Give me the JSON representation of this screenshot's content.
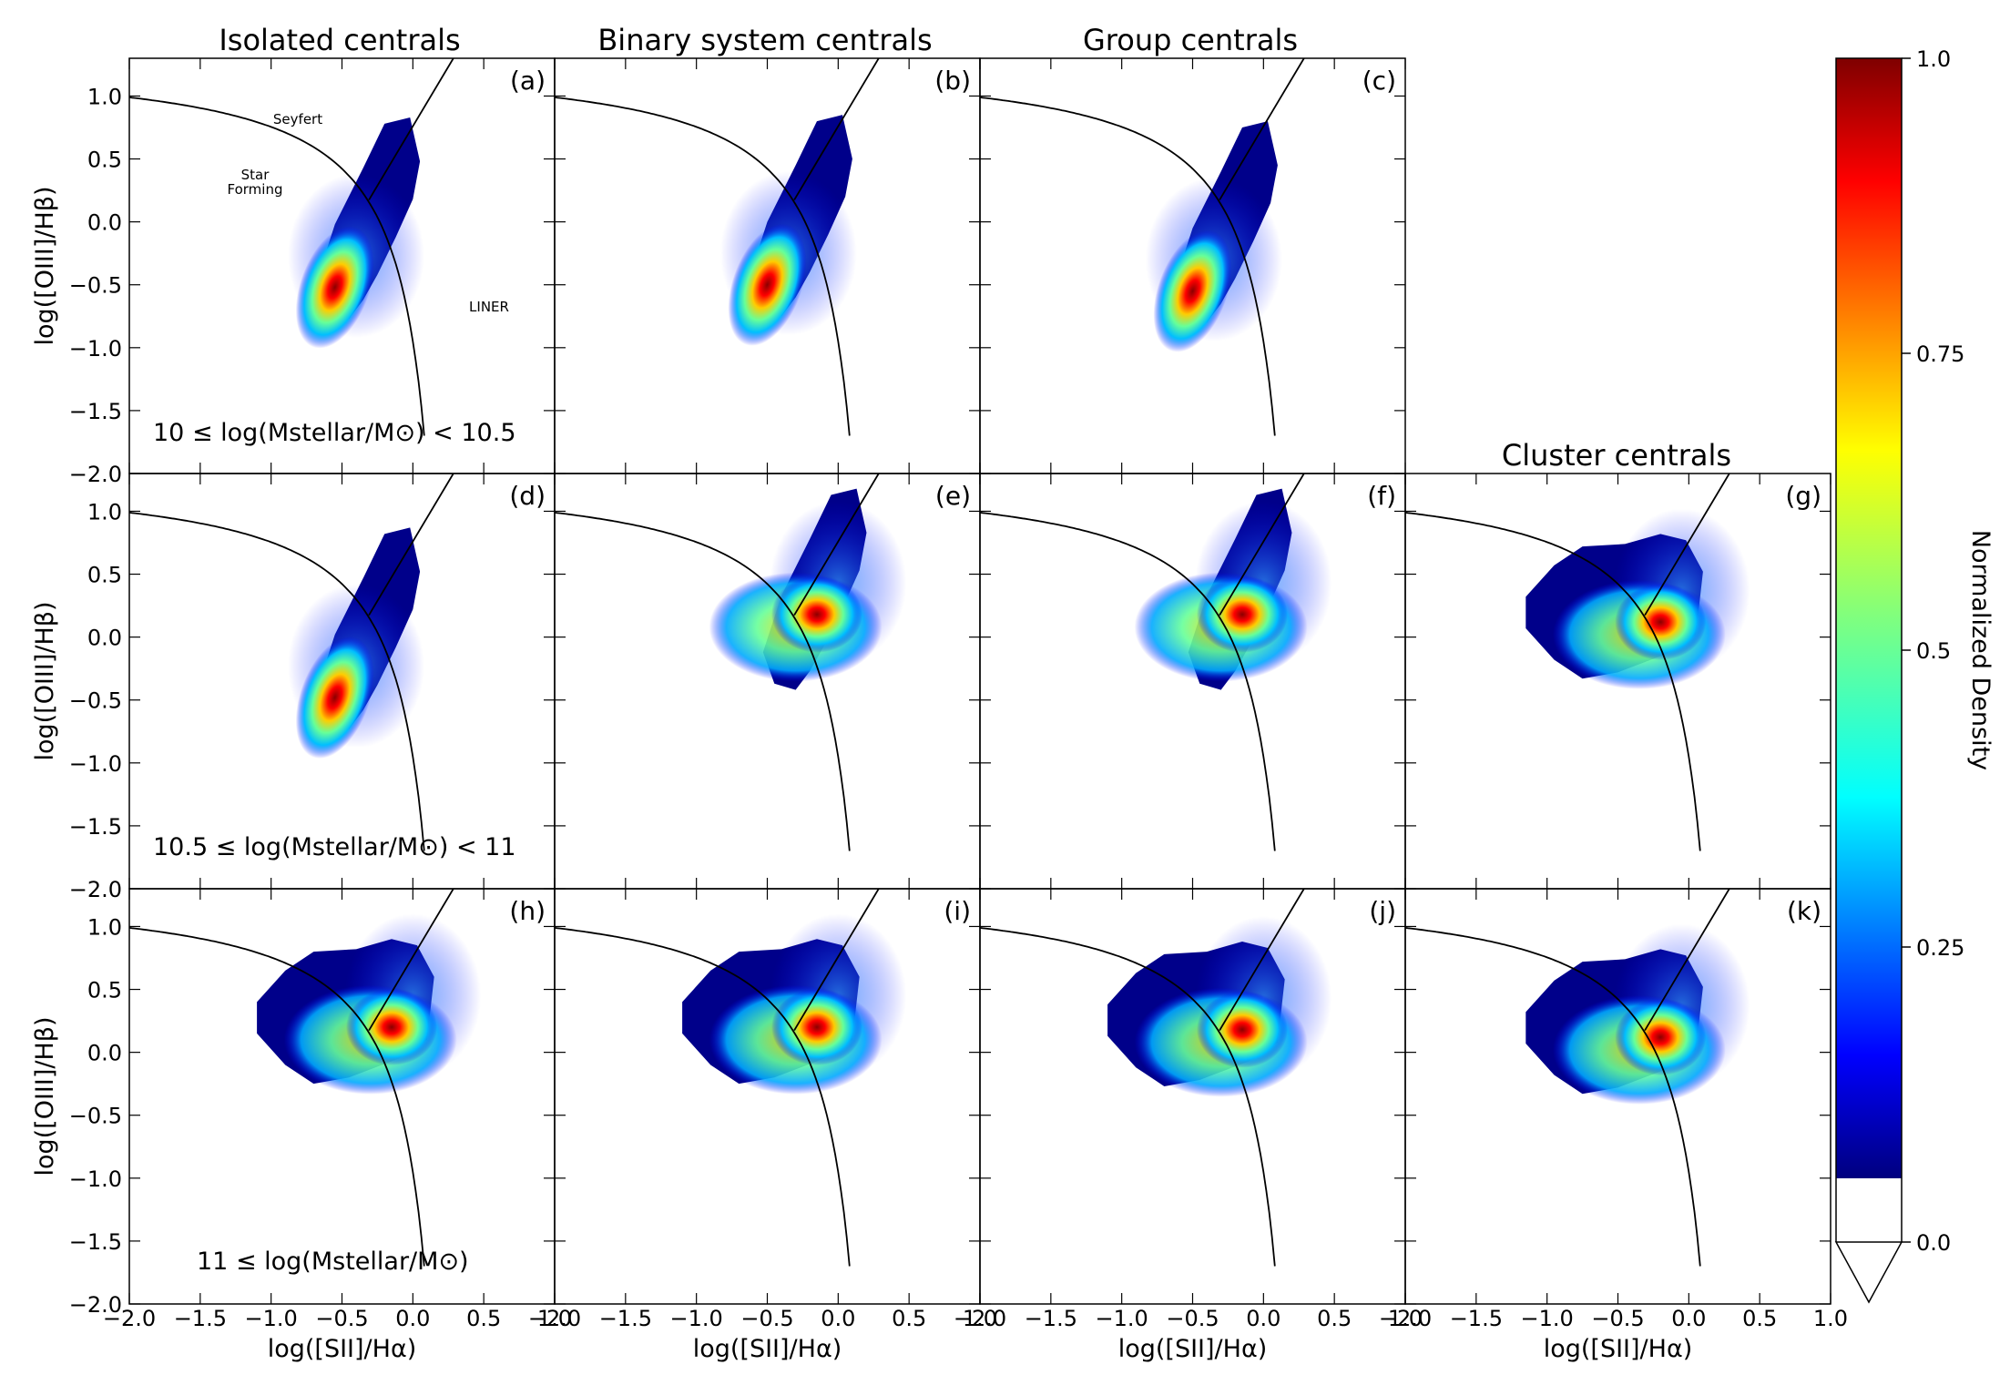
{
  "column_titles": [
    "Isolated centrals",
    "Binary system centrals",
    "Group centrals",
    "Cluster centrals"
  ],
  "xlabel": "log([SII]/Hα)",
  "ylabel": "log([OIII]/Hβ)",
  "row_mass_labels": [
    "10 ≤ log(Mstellar/M⊙) < 10.5",
    "10.5 ≤ log(Mstellar/M⊙) < 11",
    "11 ≤ log(Mstellar/M⊙)"
  ],
  "region_labels": {
    "seyfert": "Seyfert",
    "star_forming_1": "Star",
    "star_forming_2": "Forming",
    "liner": "LINER"
  },
  "colorbar": {
    "label": "Normalized Density",
    "ticks": [
      "1.0",
      "0.75",
      "0.5",
      "0.25",
      "0.0"
    ],
    "colormap": "jet"
  },
  "chart_data": {
    "type": "heatmap",
    "xlim": [
      -2.0,
      1.0
    ],
    "ylim": [
      -2.0,
      1.3
    ],
    "xticks": [
      "−2.0",
      "−1.5",
      "−1.0",
      "−0.5",
      "0.0",
      "0.5",
      "1.0"
    ],
    "yticks": [
      "−2.0",
      "−1.5",
      "−1.0",
      "−0.5",
      "0.0",
      "0.5",
      "1.0"
    ],
    "demarcation": {
      "kewley_max_starburst": "0.72/(x-0.32)+1.30",
      "seyfert_liner": "1.89x+0.76"
    },
    "panels": [
      {
        "id": "(a)",
        "row": 0,
        "col": 0,
        "peak": [
          -0.55,
          -0.52
        ]
      },
      {
        "id": "(b)",
        "row": 0,
        "col": 1,
        "peak": [
          -0.5,
          -0.5
        ]
      },
      {
        "id": "(c)",
        "row": 0,
        "col": 2,
        "peak": [
          -0.5,
          -0.55
        ]
      },
      {
        "id": "(d)",
        "row": 1,
        "col": 0,
        "peak": [
          -0.55,
          -0.48
        ]
      },
      {
        "id": "(e)",
        "row": 1,
        "col": 1,
        "peak": [
          -0.15,
          0.18
        ]
      },
      {
        "id": "(f)",
        "row": 1,
        "col": 2,
        "peak": [
          -0.15,
          0.18
        ]
      },
      {
        "id": "(g)",
        "row": 1,
        "col": 3,
        "peak": [
          -0.2,
          0.12
        ]
      },
      {
        "id": "(h)",
        "row": 2,
        "col": 0,
        "peak": [
          -0.15,
          0.2
        ]
      },
      {
        "id": "(i)",
        "row": 2,
        "col": 1,
        "peak": [
          -0.15,
          0.2
        ]
      },
      {
        "id": "(j)",
        "row": 2,
        "col": 2,
        "peak": [
          -0.15,
          0.18
        ]
      },
      {
        "id": "(k)",
        "row": 2,
        "col": 3,
        "peak": [
          -0.2,
          0.12
        ]
      }
    ]
  }
}
